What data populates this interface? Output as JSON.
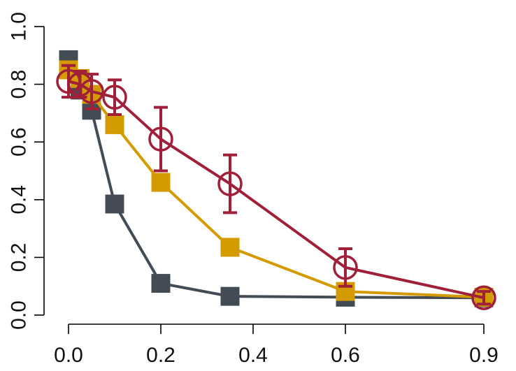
{
  "chart_data": {
    "type": "line",
    "title": "",
    "xlabel": "",
    "ylabel": "",
    "xlim": [
      0.0,
      0.9
    ],
    "ylim": [
      0.0,
      1.0
    ],
    "x_ticks": [
      0.0,
      0.2,
      0.4,
      0.6,
      0.9
    ],
    "x_tick_labels": [
      "0.0",
      "0.2",
      "0.4",
      "0.6",
      "0.9"
    ],
    "y_ticks": [
      0.0,
      0.2,
      0.4,
      0.6,
      0.8,
      1.0
    ],
    "y_tick_labels": [
      "0.0",
      "0.2",
      "0.4",
      "0.6",
      "0.8",
      "1.0"
    ],
    "grid": false,
    "legend": false,
    "series": [
      {
        "color": "#434c54",
        "marker": "filled-square",
        "x": [
          0.0,
          0.025,
          0.05,
          0.1,
          0.2,
          0.35,
          0.6,
          0.9
        ],
        "y": [
          0.885,
          0.78,
          0.71,
          0.385,
          0.11,
          0.065,
          0.062,
          0.06
        ]
      },
      {
        "color": "#d39b00",
        "marker": "filled-square",
        "x": [
          0.0,
          0.025,
          0.05,
          0.1,
          0.2,
          0.35,
          0.6,
          0.9
        ],
        "y": [
          0.85,
          0.82,
          0.765,
          0.66,
          0.46,
          0.235,
          0.082,
          0.062
        ]
      },
      {
        "color": "#a0203a",
        "marker": "open-circle",
        "x": [
          0.0,
          0.025,
          0.05,
          0.1,
          0.2,
          0.35,
          0.6,
          0.9
        ],
        "y": [
          0.81,
          0.8,
          0.775,
          0.755,
          0.61,
          0.455,
          0.165,
          0.06
        ],
        "error": [
          0.055,
          0.045,
          0.06,
          0.06,
          0.11,
          0.1,
          0.065,
          0.022
        ]
      }
    ]
  }
}
